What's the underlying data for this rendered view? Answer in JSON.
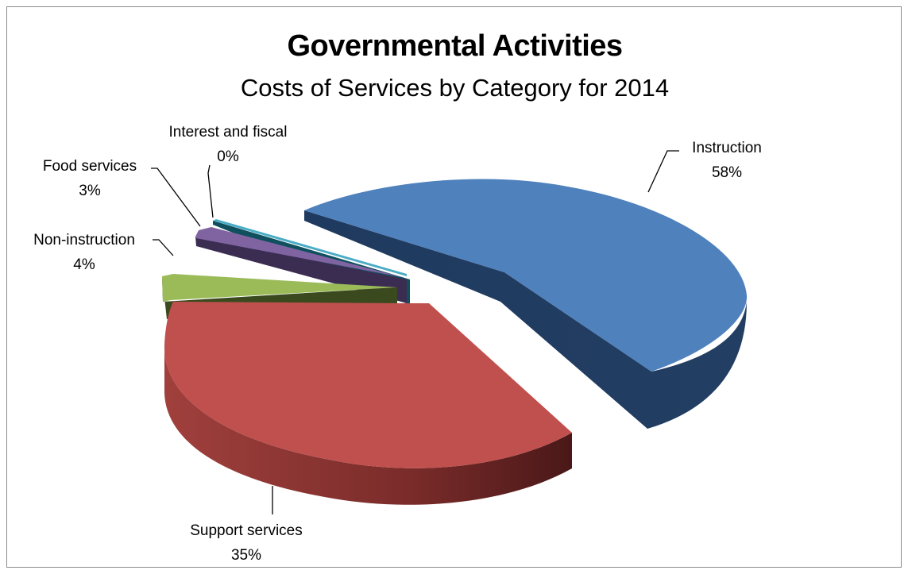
{
  "chart_data": {
    "type": "pie",
    "title": "Governmental Activities",
    "subtitle": "Costs of Services by Category for 2014",
    "slices": [
      {
        "label": "Instruction",
        "percent_label": "58%",
        "value": 58,
        "color": "#4f81bd"
      },
      {
        "label": "Support services",
        "percent_label": "35%",
        "value": 35,
        "color": "#c0504d"
      },
      {
        "label": "Non-instruction",
        "percent_label": "4%",
        "value": 4,
        "color": "#9bbb59"
      },
      {
        "label": "Food services",
        "percent_label": "3%",
        "value": 3,
        "color": "#8064a2"
      },
      {
        "label": "Interest and fiscal",
        "percent_label": "0%",
        "value": 0.3,
        "color": "#4bacc6"
      }
    ],
    "style": "3d-exploded"
  }
}
